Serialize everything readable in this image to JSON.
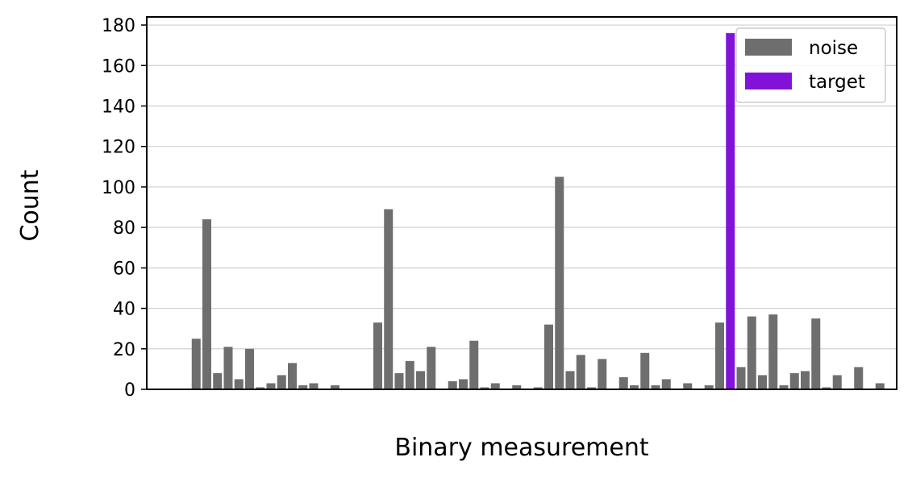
{
  "chart_data": {
    "type": "bar",
    "xlabel": "Binary measurement",
    "ylabel": "Count",
    "ylim": [
      0,
      184
    ],
    "yticks": [
      0,
      20,
      40,
      60,
      80,
      100,
      120,
      140,
      160,
      180
    ],
    "grid": "y",
    "legend_position": "top-right",
    "colors": {
      "noise": "#6e6e6e",
      "target": "#8113d9"
    },
    "series": [
      {
        "name": "noise",
        "values": [
          0,
          0,
          0,
          25,
          84,
          8,
          21,
          5,
          20,
          1,
          3,
          7,
          13,
          2,
          3,
          0,
          2,
          0,
          0,
          0,
          33,
          89,
          8,
          14,
          9,
          21,
          0,
          4,
          5,
          24,
          1,
          3,
          0,
          2,
          0,
          1,
          32,
          105,
          9,
          17,
          1,
          15,
          0,
          6,
          2,
          18,
          2,
          5,
          0,
          3,
          0,
          2,
          33,
          0,
          11,
          36,
          7,
          37,
          2,
          8,
          9,
          35,
          1,
          7,
          0,
          11,
          0,
          3,
          0
        ]
      },
      {
        "name": "target",
        "values": [
          0,
          0,
          0,
          0,
          0,
          0,
          0,
          0,
          0,
          0,
          0,
          0,
          0,
          0,
          0,
          0,
          0,
          0,
          0,
          0,
          0,
          0,
          0,
          0,
          0,
          0,
          0,
          0,
          0,
          0,
          0,
          0,
          0,
          0,
          0,
          0,
          0,
          0,
          0,
          0,
          0,
          0,
          0,
          0,
          0,
          0,
          0,
          0,
          0,
          0,
          0,
          0,
          0,
          176,
          0,
          0,
          0,
          0,
          0,
          0,
          0,
          0,
          0,
          0,
          0,
          0,
          0,
          0,
          0
        ]
      }
    ]
  }
}
